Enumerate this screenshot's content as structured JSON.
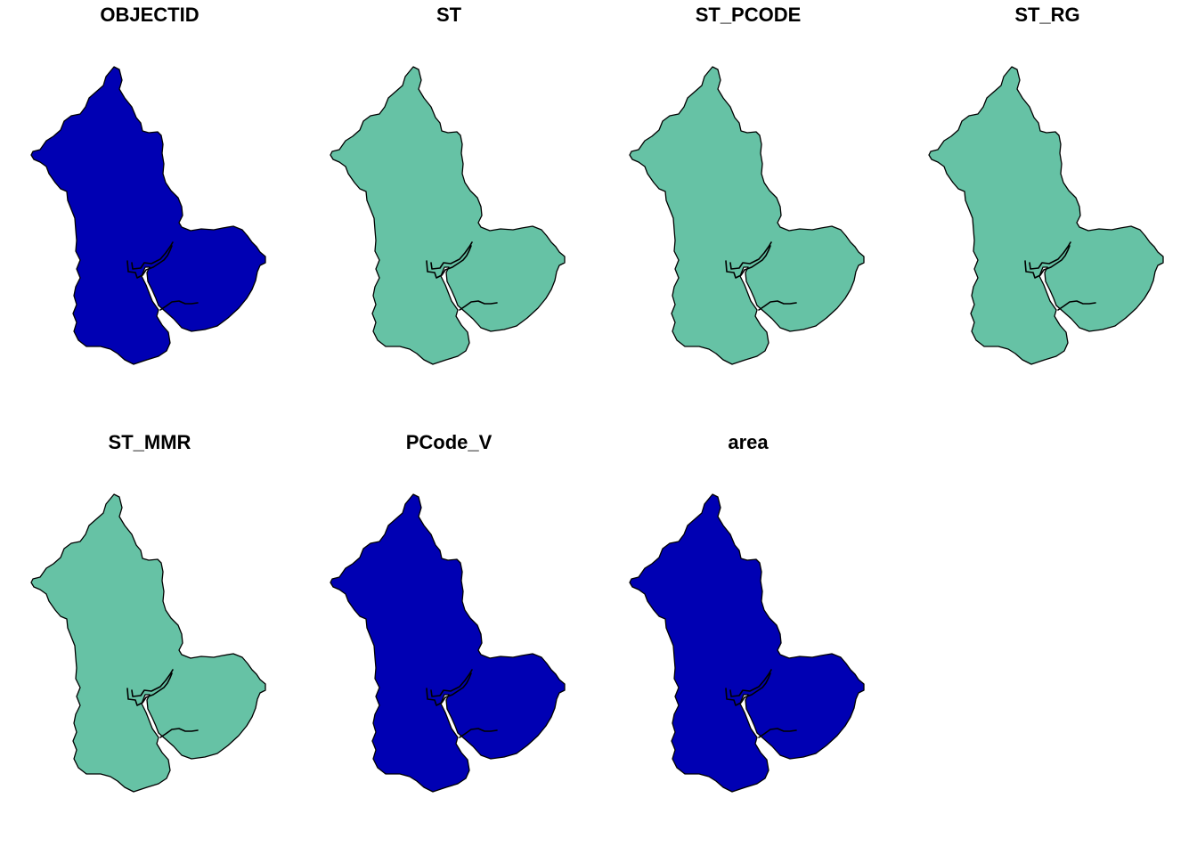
{
  "map": {
    "panels": [
      {
        "title": "OBJECTID",
        "fill": "#0000B3"
      },
      {
        "title": "ST",
        "fill": "#66C2A5"
      },
      {
        "title": "ST_PCODE",
        "fill": "#66C2A5"
      },
      {
        "title": "ST_RG",
        "fill": "#66C2A5"
      },
      {
        "title": "ST_MMR",
        "fill": "#66C2A5"
      },
      {
        "title": "PCode_V",
        "fill": "#0000B3"
      },
      {
        "title": "area",
        "fill": "#0000B3"
      }
    ]
  }
}
